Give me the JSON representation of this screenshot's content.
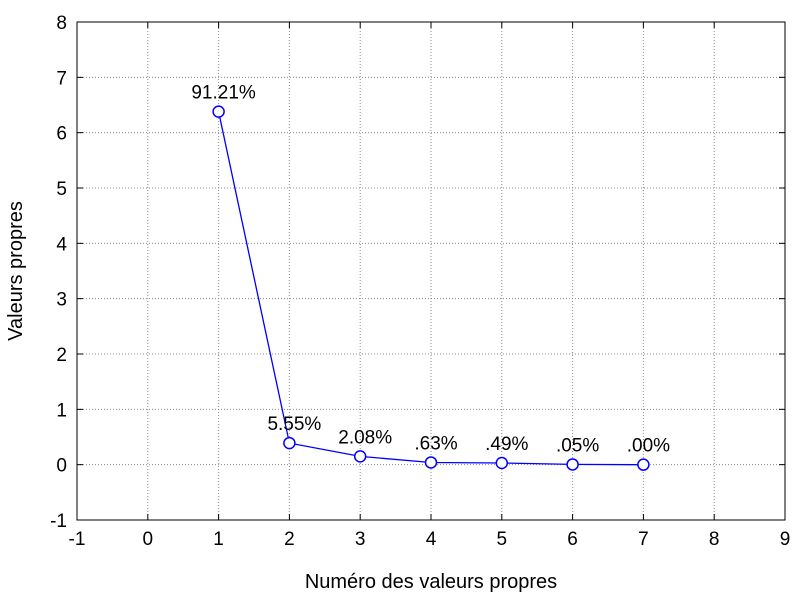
{
  "chart_data": {
    "type": "line",
    "title": "",
    "xlabel": "Numéro des valeurs propres",
    "ylabel": "Valeurs propres",
    "xlim": [
      -1,
      9
    ],
    "ylim": [
      -1,
      8
    ],
    "x_ticks": [
      "-1",
      "0",
      "1",
      "2",
      "3",
      "4",
      "5",
      "6",
      "7",
      "8",
      "9"
    ],
    "y_ticks": [
      "-1",
      "0",
      "1",
      "2",
      "3",
      "4",
      "5",
      "6",
      "7",
      "8"
    ],
    "grid": true,
    "series": [
      {
        "x": [
          1,
          2,
          3,
          4,
          5,
          6,
          7
        ],
        "y": [
          6.38,
          0.39,
          0.15,
          0.04,
          0.03,
          0.004,
          0.0
        ],
        "labels": [
          "91.21%",
          "5.55%",
          "2.08%",
          ".63%",
          ".49%",
          ".05%",
          ".00%"
        ],
        "color": "#0000ff",
        "marker": "circle"
      }
    ]
  }
}
